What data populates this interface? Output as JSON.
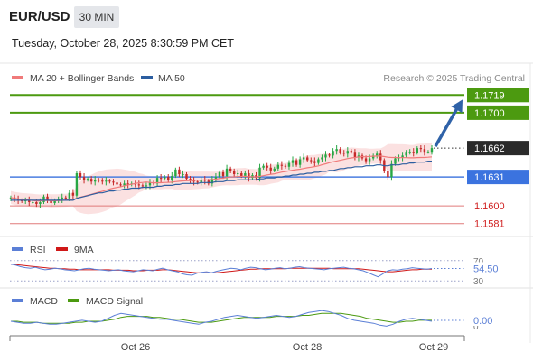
{
  "header": {
    "pair": "EUR/USD",
    "timeframe": "30 MIN",
    "datetime": "Tuesday, October 28, 2025 8:30:59 PM CET"
  },
  "legend": {
    "ma20_label": "MA 20 + Bollinger Bands",
    "ma50_label": "MA 50",
    "credit": "Research © 2025 Trading Central"
  },
  "colors": {
    "ma20": "#f07a7a",
    "ma50": "#2c5ea0",
    "resistance": "#4c9a10",
    "pivot": "#4a7de0",
    "support": "#e07a7a",
    "candle_up": "#28a745",
    "candle_down": "#c62828",
    "arrow": "#2f62a8",
    "rsi": "#5b7fd6",
    "rsi_ma": "#d01818",
    "macd": "#5b7fd6",
    "macd_signal": "#4c9a10"
  },
  "chart_data": [
    {
      "type": "candlestick",
      "panel": "price",
      "x_ticks": [
        "Oct 26",
        "Oct 28",
        "Oct 29"
      ],
      "ylim": [
        1.1572,
        1.1728
      ],
      "current_price": "1.1662",
      "levels": [
        {
          "value": 1.1719,
          "label": "1.1719",
          "kind": "resistance"
        },
        {
          "value": 1.17,
          "label": "1.1700",
          "kind": "resistance"
        },
        {
          "value": 1.1631,
          "label": "1.1631",
          "kind": "pivot"
        },
        {
          "value": 1.16,
          "label": "1.1600",
          "kind": "support"
        },
        {
          "value": 1.1581,
          "label": "1.1581",
          "kind": "support"
        }
      ],
      "close": [
        1.1609,
        1.1607,
        1.1606,
        1.1605,
        1.1606,
        1.1604,
        1.1604,
        1.1602,
        1.1604,
        1.161,
        1.1606,
        1.1603,
        1.1606,
        1.1607,
        1.1609,
        1.1608,
        1.1614,
        1.1611,
        1.1635,
        1.1631,
        1.1628,
        1.1629,
        1.1626,
        1.1628,
        1.1627,
        1.1626,
        1.1627,
        1.1626,
        1.1625,
        1.1623,
        1.1622,
        1.1624,
        1.1623,
        1.1624,
        1.1623,
        1.1622,
        1.1621,
        1.1622,
        1.1625,
        1.1624,
        1.163,
        1.1629,
        1.1631,
        1.1628,
        1.1632,
        1.1639,
        1.1634,
        1.1634,
        1.1629,
        1.1627,
        1.1626,
        1.1625,
        1.1628,
        1.1627,
        1.1624,
        1.1629,
        1.1631,
        1.1636,
        1.1632,
        1.164,
        1.1637,
        1.1634,
        1.1635,
        1.1632,
        1.1635,
        1.163,
        1.1633,
        1.163,
        1.1641,
        1.1643,
        1.1641,
        1.1638,
        1.164,
        1.1644,
        1.1643,
        1.1642,
        1.1646,
        1.1649,
        1.1644,
        1.165,
        1.1652,
        1.1649,
        1.1648,
        1.1646,
        1.165,
        1.1652,
        1.1655,
        1.1654,
        1.1659,
        1.1661,
        1.1657,
        1.1656,
        1.1659,
        1.1658,
        1.1652,
        1.1654,
        1.1651,
        1.1648,
        1.1651,
        1.1654,
        1.1656,
        1.1649,
        1.1637,
        1.1631,
        1.1645,
        1.1651,
        1.1652,
        1.1654,
        1.1658,
        1.1658,
        1.1657,
        1.1662,
        1.1661,
        1.1658,
        1.1658,
        1.1662
      ],
      "ma50": [
        1.1606,
        1.1606,
        1.1606,
        1.1606,
        1.1606,
        1.1606,
        1.1606,
        1.1606,
        1.1606,
        1.1606,
        1.1606,
        1.1606,
        1.1606,
        1.1606,
        1.1606,
        1.1606,
        1.1606,
        1.1606,
        1.1608,
        1.1609,
        1.161,
        1.1611,
        1.1612,
        1.1613,
        1.1614,
        1.1614,
        1.1615,
        1.1616,
        1.1616,
        1.1617,
        1.1617,
        1.1618,
        1.1618,
        1.1619,
        1.1619,
        1.1619,
        1.162,
        1.162,
        1.162,
        1.162,
        1.1621,
        1.1621,
        1.1622,
        1.1622,
        1.1622,
        1.1623,
        1.1623,
        1.1624,
        1.1624,
        1.1624,
        1.1624,
        1.1624,
        1.1625,
        1.1625,
        1.1625,
        1.1625,
        1.1626,
        1.1626,
        1.1626,
        1.1627,
        1.1627,
        1.1627,
        1.1628,
        1.1628,
        1.1628,
        1.1628,
        1.1628,
        1.1628,
        1.1629,
        1.1629,
        1.163,
        1.163,
        1.163,
        1.1631,
        1.1631,
        1.1632,
        1.1632,
        1.1633,
        1.1633,
        1.1634,
        1.1634,
        1.1635,
        1.1635,
        1.1636,
        1.1636,
        1.1637,
        1.1637,
        1.1638,
        1.1638,
        1.1639,
        1.164,
        1.164,
        1.1641,
        1.1641,
        1.1642,
        1.1642,
        1.1642,
        1.1643,
        1.1643,
        1.1643,
        1.1644,
        1.1644,
        1.1643,
        1.1643,
        1.1644,
        1.1644,
        1.1644,
        1.1645,
        1.1645,
        1.1646,
        1.1646,
        1.1647,
        1.1647,
        1.1647,
        1.1648,
        1.1648
      ]
    },
    {
      "type": "line",
      "panel": "rsi",
      "title": "RSI",
      "value_label": "54.50",
      "ticks": [
        "70",
        "30"
      ],
      "ylim": [
        25,
        75
      ],
      "series": [
        {
          "name": "RSI",
          "values": [
            63,
            61,
            58,
            56,
            55,
            57,
            54,
            52,
            53,
            55,
            54,
            52,
            51,
            50,
            52,
            54,
            55,
            53,
            52,
            51,
            50,
            51,
            52,
            50,
            49,
            48,
            50,
            52,
            51,
            50,
            53,
            55,
            52,
            50,
            48,
            44,
            42,
            41,
            45,
            47,
            48,
            46,
            49,
            51,
            53,
            55,
            54,
            52,
            55,
            57,
            56,
            54,
            52,
            53,
            55,
            56,
            54,
            55,
            57,
            58,
            56,
            55,
            54,
            53,
            52,
            54,
            55,
            56,
            57,
            55,
            54,
            52,
            50,
            46,
            42,
            38,
            44,
            50,
            52,
            51,
            53,
            54,
            56,
            55,
            54,
            53,
            54.5
          ]
        },
        {
          "name": "9MA",
          "values": [
            63,
            62,
            61,
            60,
            59,
            58,
            57,
            56,
            55,
            55,
            54,
            54,
            53,
            53,
            52,
            52,
            52,
            52,
            52,
            52,
            52,
            51,
            51,
            51,
            51,
            50,
            50,
            50,
            51,
            51,
            51,
            52,
            52,
            51,
            50,
            49,
            48,
            47,
            46,
            46,
            46,
            46,
            46,
            47,
            48,
            49,
            50,
            51,
            52,
            53,
            53,
            54,
            54,
            54,
            54,
            54,
            54,
            55,
            55,
            55,
            55,
            55,
            55,
            55,
            55,
            55,
            54,
            54,
            54,
            54,
            54,
            54,
            53,
            52,
            51,
            50,
            49,
            48,
            48,
            49,
            50,
            51,
            52,
            52,
            53,
            53,
            53
          ]
        }
      ]
    },
    {
      "type": "line",
      "panel": "macd",
      "title": "MACD",
      "value_label": "0.00",
      "ticks": [
        "0"
      ],
      "ylim": [
        -0.0012,
        0.0012
      ],
      "series": [
        {
          "name": "MACD",
          "values": [
            0.0,
            -0.0001,
            -0.0002,
            -0.0002,
            -0.0001,
            -0.0002,
            -0.0003,
            -0.0003,
            -0.0002,
            -0.0001,
            0.0,
            0.0001,
            0.0,
            -0.0001,
            0.0,
            0.0003,
            0.0006,
            0.0008,
            0.0007,
            0.0006,
            0.0005,
            0.0004,
            0.0003,
            0.0002,
            0.0002,
            0.0001,
            0.0,
            -0.0001,
            -0.0002,
            -0.0003,
            -0.0001,
            0.0,
            0.0002,
            0.0004,
            0.0005,
            0.0006,
            0.0005,
            0.0004,
            0.0003,
            0.0004,
            0.0005,
            0.0006,
            0.0005,
            0.0004,
            0.0005,
            0.0007,
            0.0009,
            0.001,
            0.0011,
            0.001,
            0.0008,
            0.0006,
            0.0003,
            0.0001,
            0.0,
            -0.0001,
            -0.0002,
            -0.0004,
            -0.0005,
            -0.0003,
            0.0,
            0.0002,
            0.0003,
            0.0002,
            0.0001,
            0.0
          ]
        },
        {
          "name": "MACD Signal",
          "values": [
            0.0,
            0.0,
            -0.0001,
            -0.0001,
            -0.0001,
            -0.0002,
            -0.0002,
            -0.0002,
            -0.0002,
            -0.0002,
            -0.0001,
            -0.0001,
            0.0,
            0.0,
            0.0,
            0.0001,
            0.0002,
            0.0004,
            0.0005,
            0.0005,
            0.0005,
            0.0005,
            0.0004,
            0.0004,
            0.0003,
            0.0002,
            0.0002,
            0.0001,
            0.0,
            -0.0001,
            -0.0001,
            -0.0001,
            0.0,
            0.0001,
            0.0002,
            0.0003,
            0.0004,
            0.0004,
            0.0004,
            0.0004,
            0.0004,
            0.0005,
            0.0005,
            0.0005,
            0.0005,
            0.0006,
            0.0006,
            0.0007,
            0.0008,
            0.0008,
            0.0008,
            0.0008,
            0.0007,
            0.0006,
            0.0005,
            0.0003,
            0.0002,
            0.0001,
            0.0,
            -0.0001,
            -0.0001,
            0.0,
            0.0,
            0.0001,
            0.0001,
            0.0001
          ]
        }
      ]
    }
  ]
}
